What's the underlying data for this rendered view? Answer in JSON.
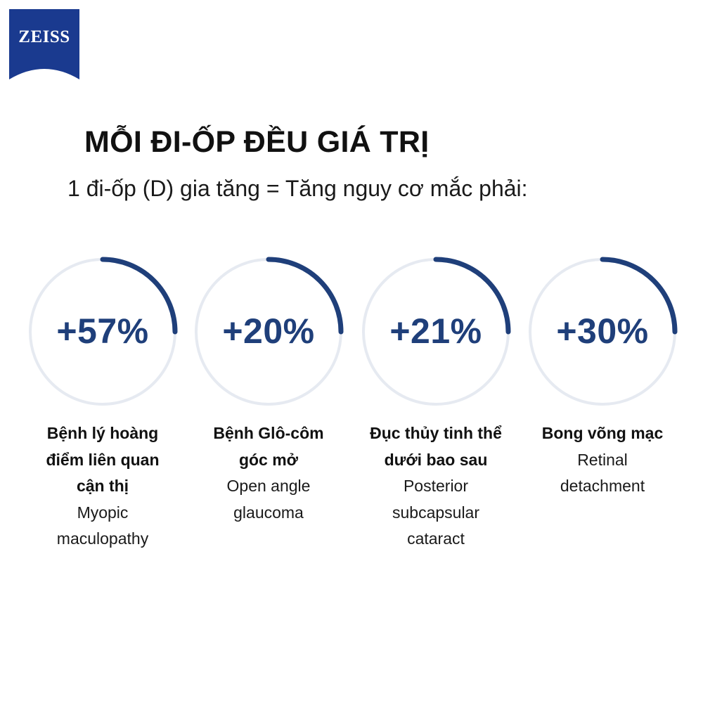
{
  "brand": {
    "logo_text": "ZEISS",
    "color": "#1a3a8f"
  },
  "header": {
    "title": "MỖI ĐI-ỐP ĐỀU GIÁ TRỊ",
    "subtitle": "1 đi-ốp (D) gia tăng = Tăng nguy cơ mắc phải:"
  },
  "colors": {
    "ring_track": "#e6eaf1",
    "ring_arc": "#1f3f7a"
  },
  "stats": [
    {
      "value": "+57%",
      "vi_lines": [
        "Bệnh lý hoàng",
        "điểm liên quan",
        "cận thị"
      ],
      "en_lines": [
        "Myopic",
        "maculopathy"
      ]
    },
    {
      "value": "+20%",
      "vi_lines": [
        "Bệnh Glô-côm",
        "góc mở"
      ],
      "en_lines": [
        "Open angle",
        "glaucoma"
      ]
    },
    {
      "value": "+21%",
      "vi_lines": [
        "Đục thủy tinh thể",
        "dưới bao sau"
      ],
      "en_lines": [
        "Posterior",
        "subcapsular",
        "cataract"
      ]
    },
    {
      "value": "+30%",
      "vi_lines": [
        "Bong võng mạc"
      ],
      "en_lines": [
        "Retinal",
        "detachment"
      ]
    }
  ]
}
